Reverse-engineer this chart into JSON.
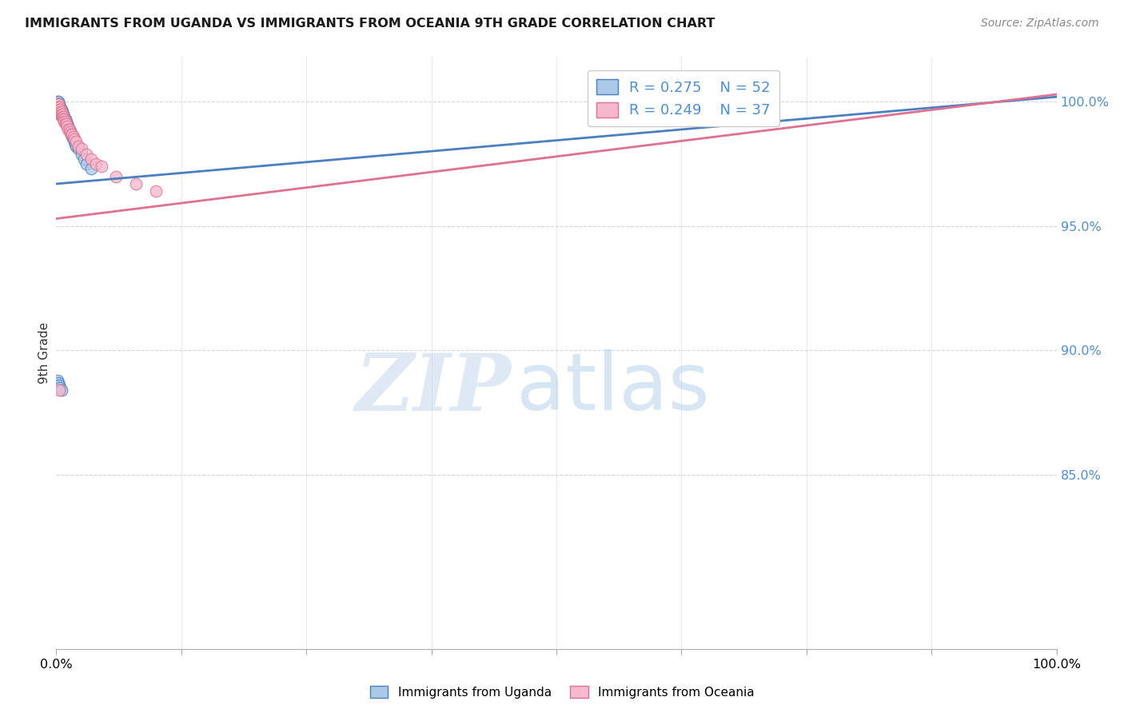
{
  "title": "IMMIGRANTS FROM UGANDA VS IMMIGRANTS FROM OCEANIA 9TH GRADE CORRELATION CHART",
  "source": "Source: ZipAtlas.com",
  "ylabel": "9th Grade",
  "xlim": [
    0.0,
    1.0
  ],
  "ylim": [
    0.78,
    1.018
  ],
  "yticks": [
    0.85,
    0.9,
    0.95,
    1.0
  ],
  "ytick_labels": [
    "85.0%",
    "90.0%",
    "95.0%",
    "100.0%"
  ],
  "color_uganda": "#aac8e8",
  "color_oceania": "#f5b8cc",
  "color_uganda_line": "#4a7fc1",
  "color_oceania_line": "#e07090",
  "uganda_x": [
    0.001,
    0.001,
    0.001,
    0.001,
    0.002,
    0.002,
    0.002,
    0.002,
    0.002,
    0.003,
    0.003,
    0.003,
    0.003,
    0.004,
    0.004,
    0.004,
    0.004,
    0.005,
    0.005,
    0.005,
    0.006,
    0.006,
    0.006,
    0.007,
    0.007,
    0.008,
    0.008,
    0.009,
    0.009,
    0.01,
    0.01,
    0.011,
    0.012,
    0.013,
    0.014,
    0.015,
    0.016,
    0.017,
    0.018,
    0.019,
    0.02,
    0.022,
    0.025,
    0.028,
    0.03,
    0.035,
    0.001,
    0.002,
    0.003,
    0.004,
    0.005
  ],
  "uganda_y": [
    1.0,
    0.999,
    0.998,
    0.997,
    1.0,
    0.999,
    0.998,
    0.997,
    0.996,
    0.999,
    0.998,
    0.997,
    0.996,
    0.998,
    0.997,
    0.996,
    0.995,
    0.997,
    0.996,
    0.995,
    0.996,
    0.995,
    0.994,
    0.995,
    0.994,
    0.994,
    0.993,
    0.993,
    0.992,
    0.992,
    0.991,
    0.991,
    0.99,
    0.989,
    0.988,
    0.987,
    0.986,
    0.985,
    0.984,
    0.983,
    0.982,
    0.981,
    0.979,
    0.977,
    0.975,
    0.973,
    0.888,
    0.887,
    0.886,
    0.885,
    0.884
  ],
  "oceania_x": [
    0.001,
    0.002,
    0.002,
    0.003,
    0.003,
    0.004,
    0.004,
    0.005,
    0.005,
    0.006,
    0.006,
    0.007,
    0.007,
    0.008,
    0.008,
    0.009,
    0.009,
    0.01,
    0.011,
    0.012,
    0.013,
    0.014,
    0.015,
    0.016,
    0.017,
    0.018,
    0.02,
    0.022,
    0.025,
    0.03,
    0.035,
    0.04,
    0.045,
    0.06,
    0.08,
    0.1,
    0.003
  ],
  "oceania_y": [
    0.999,
    0.999,
    0.998,
    0.998,
    0.997,
    0.997,
    0.996,
    0.996,
    0.995,
    0.995,
    0.994,
    0.994,
    0.993,
    0.993,
    0.992,
    0.992,
    0.991,
    0.991,
    0.99,
    0.989,
    0.989,
    0.988,
    0.987,
    0.987,
    0.986,
    0.985,
    0.984,
    0.982,
    0.981,
    0.979,
    0.977,
    0.975,
    0.974,
    0.97,
    0.967,
    0.964,
    0.884
  ],
  "uganda_trendline_x": [
    0.0,
    1.0
  ],
  "uganda_trendline_y": [
    0.967,
    1.002
  ],
  "oceania_trendline_x": [
    0.0,
    1.0
  ],
  "oceania_trendline_y": [
    0.953,
    1.003
  ],
  "watermark_zip": "ZIP",
  "watermark_atlas": "atlas",
  "background_color": "#ffffff",
  "grid_color": "#cccccc"
}
